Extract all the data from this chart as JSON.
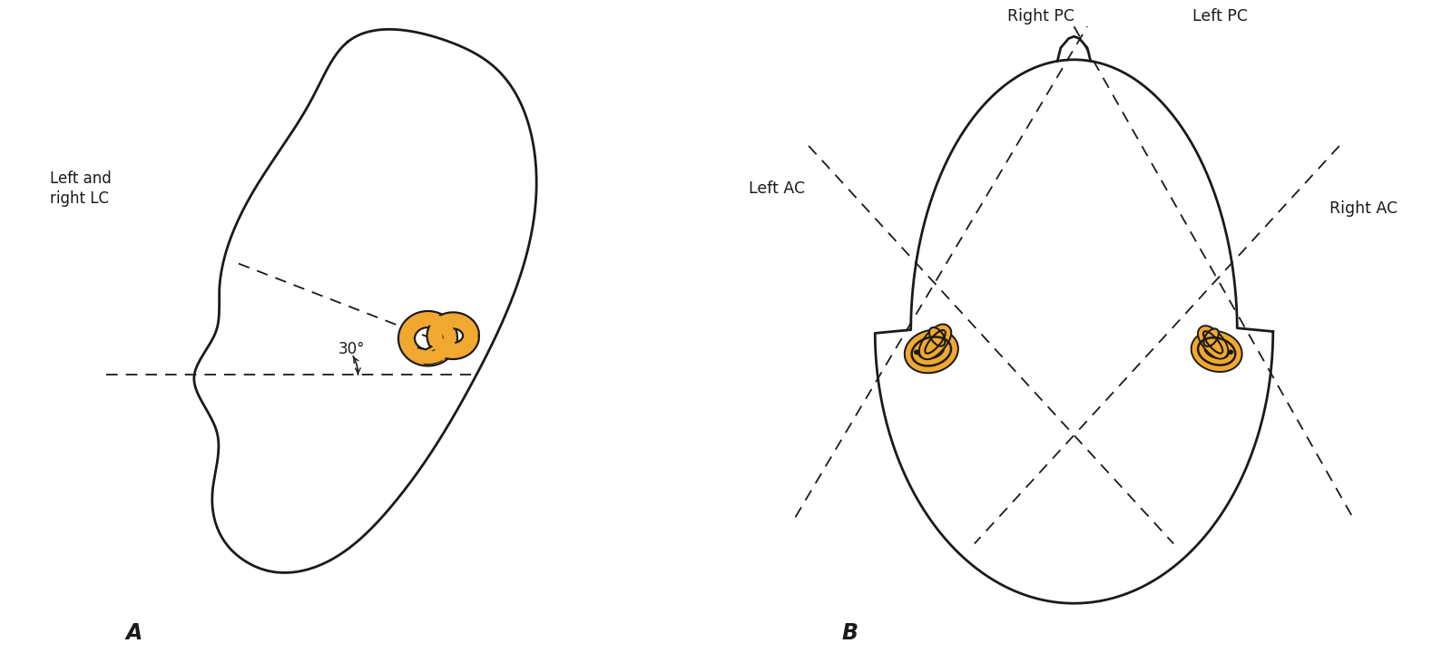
{
  "bg_color": "#ffffff",
  "line_color": "#1a1a1a",
  "orange_fill": "#F0A830",
  "orange_edge": "#1a1a1a",
  "label_A": "A",
  "label_B": "B",
  "text_left_lc": "Left and\nright LC",
  "text_30": "30°",
  "text_right_pc": "Right PC",
  "text_left_pc": "Left PC",
  "text_left_ac": "Left AC",
  "text_right_ac": "Right AC",
  "fig_width": 15.78,
  "fig_height": 7.31
}
